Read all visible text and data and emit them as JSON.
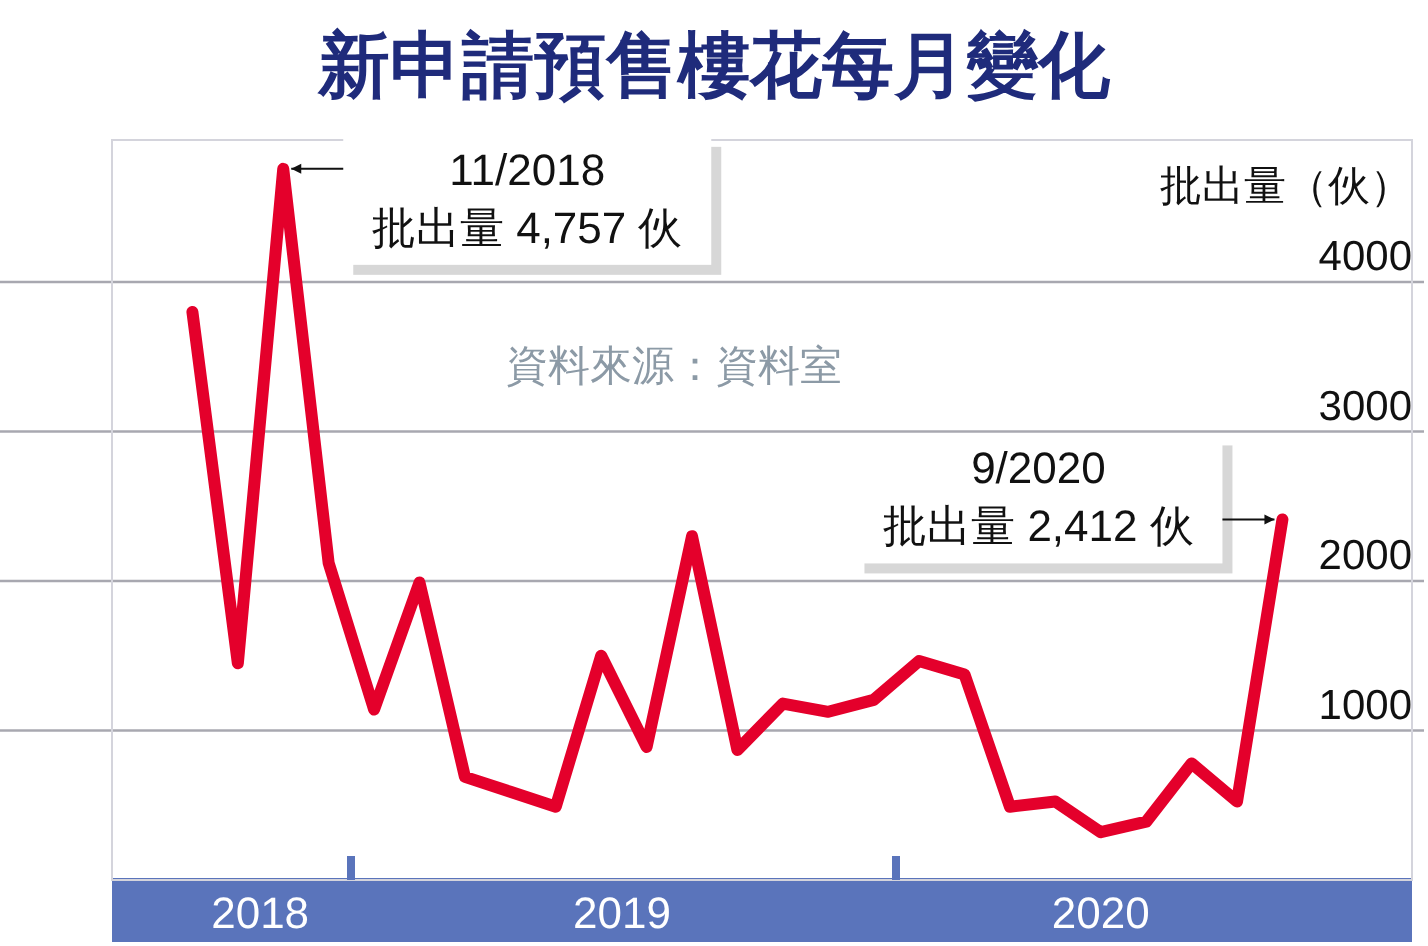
{
  "chart_data": {
    "type": "line",
    "title": "新申請預售樓花每月變化",
    "ylabel": "批出量（伙）",
    "x": [
      "2018-09",
      "2018-10",
      "2018-11",
      "2018-12",
      "2019-01",
      "2019-02",
      "2019-03",
      "2019-04",
      "2019-05",
      "2019-06",
      "2019-07",
      "2019-08",
      "2019-09",
      "2019-10",
      "2019-11",
      "2019-12",
      "2020-01",
      "2020-02",
      "2020-03",
      "2020-04",
      "2020-05",
      "2020-06",
      "2020-07",
      "2020-08",
      "2020-09"
    ],
    "series": [
      {
        "color": "#e4002b",
        "values": [
          3800,
          1450,
          4757,
          2120,
          1140,
          1990,
          690,
          590,
          490,
          1500,
          890,
          2300,
          870,
          1180,
          1125,
          1205,
          1465,
          1375,
          490,
          525,
          320,
          390,
          780,
          525,
          2412
        ]
      }
    ],
    "xlim": [
      "2018-07-08",
      "2020-11-27"
    ],
    "xticks": [
      {
        "value": "2018-10-16",
        "label": "2018"
      },
      {
        "value": "2018-12-16",
        "label": null
      },
      {
        "value": "2019-06-15",
        "label": "2019"
      },
      {
        "value": "2019-12-16",
        "label": null
      },
      {
        "value": "2020-05-01",
        "label": "2020"
      }
    ],
    "ylim": [
      0,
      4950
    ],
    "yticks": [
      1000,
      2000,
      3000,
      4000
    ],
    "grid": "y",
    "marker": "none",
    "line_style": "solid",
    "annotations": [
      {
        "text": "11/2018\n批出量 4,757 伙",
        "x": "2018-11",
        "y": 4757
      },
      {
        "text": "9/2020\n批出量 2,412 伙",
        "x": "2020-09",
        "y": 2412
      },
      "資料來源：資料室"
    ]
  }
}
